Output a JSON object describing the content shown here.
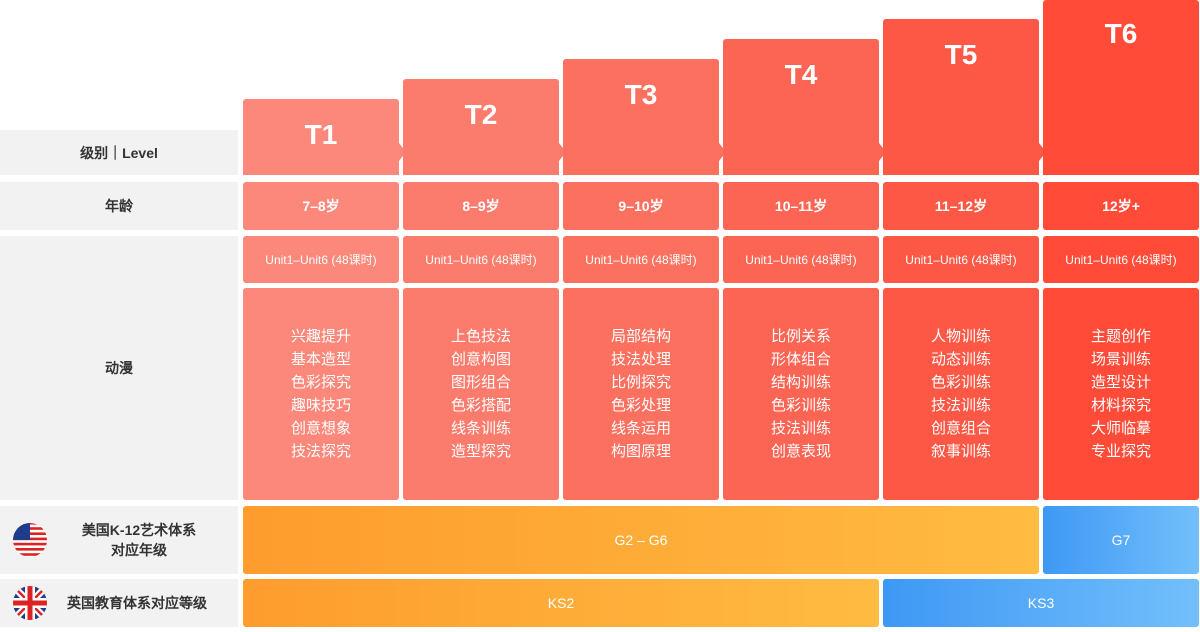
{
  "row_labels": {
    "level": "级别｜Level",
    "age": "年龄",
    "course": "动漫"
  },
  "levels": [
    {
      "name": "T1",
      "age": "7–8岁",
      "units": "Unit1–Unit6 (48课时)",
      "topics": [
        "兴趣提升",
        "基本造型",
        "色彩探究",
        "趣味技巧",
        "创意想象",
        "技法探究"
      ]
    },
    {
      "name": "T2",
      "age": "8–9岁",
      "units": "Unit1–Unit6 (48课时)",
      "topics": [
        "上色技法",
        "创意构图",
        "图形组合",
        "色彩搭配",
        "线条训练",
        "造型探究"
      ]
    },
    {
      "name": "T3",
      "age": "9–10岁",
      "units": "Unit1–Unit6 (48课时)",
      "topics": [
        "局部结构",
        "技法处理",
        "比例探究",
        "色彩处理",
        "线条运用",
        "构图原理"
      ]
    },
    {
      "name": "T4",
      "age": "10–11岁",
      "units": "Unit1–Unit6 (48课时)",
      "topics": [
        "比例关系",
        "形体组合",
        "结构训练",
        "色彩训练",
        "技法训练",
        "创意表现"
      ]
    },
    {
      "name": "T5",
      "age": "11–12岁",
      "units": "Unit1–Unit6 (48课时)",
      "topics": [
        "人物训练",
        "动态训练",
        "色彩训练",
        "技法训练",
        "创意组合",
        "叙事训练"
      ]
    },
    {
      "name": "T6",
      "age": "12岁+",
      "units": "Unit1–Unit6 (48课时)",
      "topics": [
        "主题创作",
        "场景训练",
        "造型设计",
        "材料探究",
        "大师临摹",
        "专业探究"
      ]
    }
  ],
  "us": {
    "label": [
      "美国K-12艺术体系",
      "对应年级"
    ],
    "segments": [
      "G2 – G6",
      "G7"
    ]
  },
  "uk": {
    "label": "英国教育体系对应等级",
    "segments": [
      "KS2",
      "KS3"
    ]
  }
}
